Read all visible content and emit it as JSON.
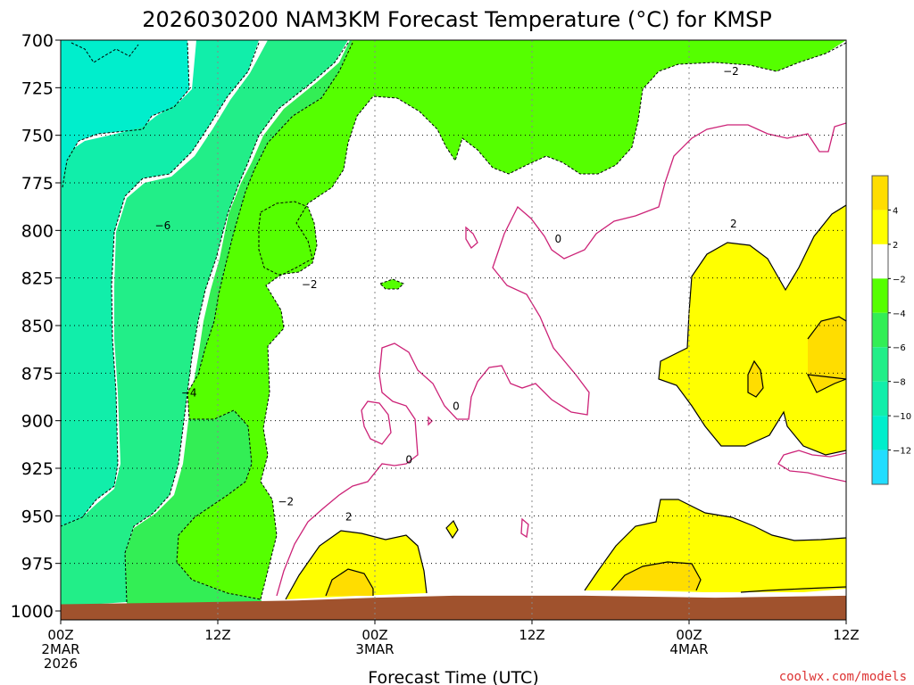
{
  "chart_data": {
    "type": "heatmap",
    "title": "2026030200 NAM3KM Forecast Temperature (°C) for KMSP",
    "xlabel": "Forecast Time (UTC)",
    "ylabel": "",
    "x_ticks": [
      {
        "hours": 0,
        "lines": [
          "00Z",
          "2MAR",
          "2026"
        ]
      },
      {
        "hours": 12,
        "lines": [
          "12Z"
        ]
      },
      {
        "hours": 24,
        "lines": [
          "00Z",
          "3MAR"
        ]
      },
      {
        "hours": 36,
        "lines": [
          "12Z"
        ]
      },
      {
        "hours": 48,
        "lines": [
          "00Z",
          "4MAR"
        ]
      },
      {
        "hours": 60,
        "lines": [
          "12Z"
        ]
      }
    ],
    "xlim_hours": [
      0,
      60
    ],
    "y_ticks": [
      700,
      725,
      750,
      775,
      800,
      825,
      850,
      875,
      900,
      925,
      950,
      975,
      1000
    ],
    "ylim_hpa": [
      700,
      1000
    ],
    "ylim_plot_bottom_hpa": 1004,
    "grid": true,
    "contour_interval": 2,
    "colorbar": {
      "placement": "right",
      "bins": [
        {
          "range": [
            4,
            6
          ],
          "color": "#ffdd00"
        },
        {
          "range": [
            2,
            4
          ],
          "color": "#ffff00"
        },
        {
          "range": [
            -2,
            2
          ],
          "color": "#ffffff"
        },
        {
          "range": [
            -4,
            -2
          ],
          "color": "#55ff00"
        },
        {
          "range": [
            -6,
            -4
          ],
          "color": "#33ee55"
        },
        {
          "range": [
            -8,
            -6
          ],
          "color": "#22ee88"
        },
        {
          "range": [
            -10,
            -8
          ],
          "color": "#11eeaa"
        },
        {
          "range": [
            -12,
            -10
          ],
          "color": "#00eecc"
        },
        {
          "range": [
            -14,
            -12
          ],
          "color": "#22ddff"
        }
      ],
      "labels": [
        "4",
        "2",
        "−2",
        "−4",
        "−6",
        "−8",
        "−10",
        "−12"
      ]
    },
    "contour_labels": [
      {
        "text": "−6",
        "hours": 7.8,
        "hpa": 797
      },
      {
        "text": "−4",
        "hours": 9.8,
        "hpa": 885
      },
      {
        "text": "−2",
        "hours": 19.0,
        "hpa": 828
      },
      {
        "text": "−2",
        "hours": 17.2,
        "hpa": 942
      },
      {
        "text": "−2",
        "hours": 51.2,
        "hpa": 716
      },
      {
        "text": "0",
        "hours": 38.0,
        "hpa": 804
      },
      {
        "text": "0",
        "hours": 30.2,
        "hpa": 892
      },
      {
        "text": "0",
        "hours": 26.6,
        "hpa": 920
      },
      {
        "text": "2",
        "hours": 22.0,
        "hpa": 950
      },
      {
        "text": "2",
        "hours": 51.4,
        "hpa": 796
      }
    ],
    "ground_color": "#a0522d",
    "surface_pressure_hpa": [
      {
        "hours": 0,
        "hpa": 996.5
      },
      {
        "hours": 10,
        "hpa": 995.5
      },
      {
        "hours": 18,
        "hpa": 994.5
      },
      {
        "hours": 24,
        "hpa": 993.0
      },
      {
        "hours": 30,
        "hpa": 992.0
      },
      {
        "hours": 40,
        "hpa": 992.0
      },
      {
        "hours": 50,
        "hpa": 993.0
      },
      {
        "hours": 60,
        "hpa": 992.0
      }
    ]
  },
  "credit": "coolwx.com/models"
}
